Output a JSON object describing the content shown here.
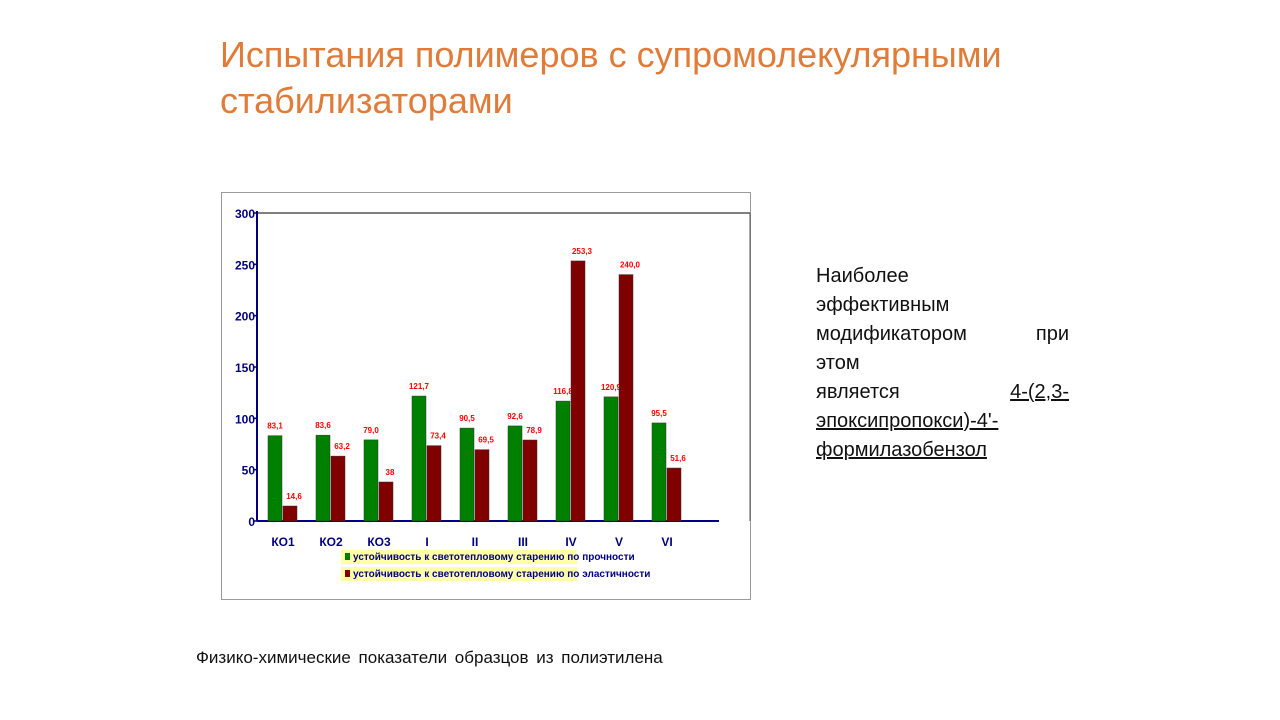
{
  "slide": {
    "title": "Испытания полимеров с супромолекулярными стабилизаторами",
    "caption": "Физико-химические  показатели образцов из полиэтилена",
    "side_text": {
      "line1": "Наиболее",
      "line2": "эффективным",
      "line3": "модификатором при",
      "line4": "этом",
      "line5_prefix": "является",
      "line5_link": "4-(2,3-",
      "line6": "эпоксипропокси)-4'-",
      "line7": "формилазобензол"
    }
  },
  "colors": {
    "title": "#E07B39",
    "series_green": "#008000",
    "series_red": "#800000",
    "label_red": "#FF0000",
    "axis": "#000080",
    "legend_bg": "#FFFF99",
    "legend_text": "#000080"
  },
  "chart_data": {
    "type": "bar",
    "categories": [
      "КО1",
      "КО2",
      "КО3",
      "I",
      "II",
      "III",
      "IV",
      "V",
      "VI"
    ],
    "series": [
      {
        "name": "устойчивость к светотепловому старению по прочности",
        "values": [
          83.1,
          83.6,
          79.0,
          121.7,
          90.5,
          92.6,
          116.8,
          120.9,
          95.5
        ],
        "labels": [
          "83,1",
          "83,6",
          "79,0",
          "121,7",
          "90,5",
          "92,6",
          "116,8",
          "120,9",
          "95,5"
        ],
        "color": "#008000"
      },
      {
        "name": "устойчивость к светотепловому старению по эластичности",
        "values": [
          14.6,
          63.2,
          38,
          73.4,
          69.5,
          78.9,
          253.3,
          240.0,
          51.6
        ],
        "labels": [
          "14,6",
          "63,2",
          "38",
          "73,4",
          "69,5",
          "78,9",
          "253,3",
          "240,0",
          "51,6"
        ],
        "color": "#800000"
      }
    ],
    "yticks": [
      "0",
      "50",
      "100",
      "150",
      "200",
      "250",
      "300"
    ],
    "ylim": [
      0,
      300
    ],
    "xlabel": "",
    "ylabel": "",
    "grid": false,
    "legend_position": "bottom"
  }
}
